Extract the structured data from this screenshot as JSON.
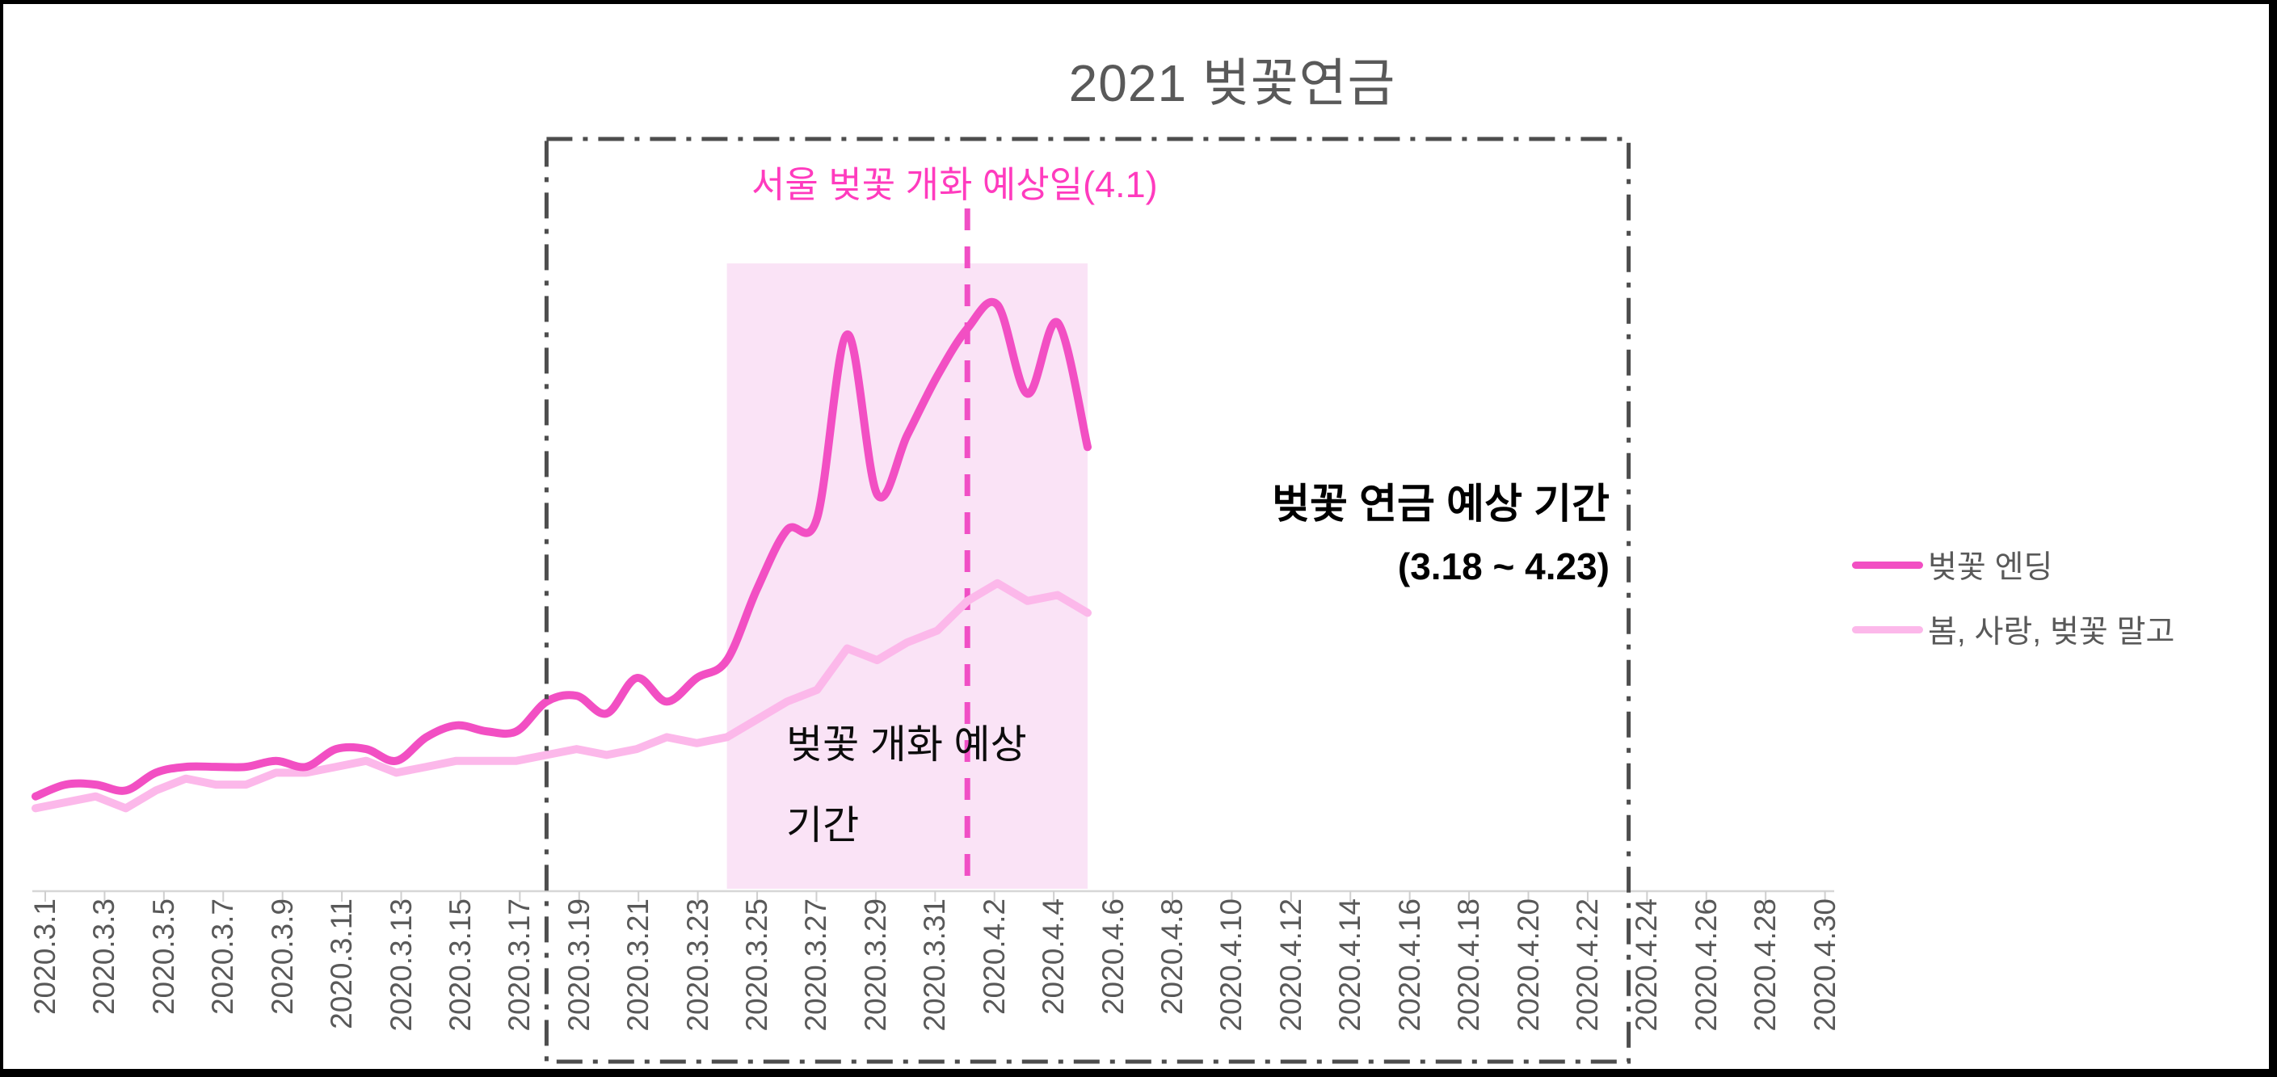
{
  "title": "2021 벚꽃연금",
  "annotations": {
    "bloom_date": "서울 벚꽃 개화 예상일(4.1)",
    "pension_line1": "벚꽃 연금 예상 기간",
    "pension_line2": "(3.18 ~ 4.23)",
    "bloom_period_line1": "벚꽃 개화 예상",
    "bloom_period_line2": "기간"
  },
  "legend": [
    {
      "label": "벚꽃 엔딩",
      "color": "#f24fc3"
    },
    {
      "label": "봄, 사랑, 벚꽃 말고",
      "color": "#fcb8ea"
    }
  ],
  "colors": {
    "series_dark": "#f24fc3",
    "series_light": "#fcb8ea",
    "bloom_region_fill": "#fae3f6",
    "bloom_vline": "#f04fc5",
    "pension_box_stroke": "#4d4d4d",
    "axis": "#d6d6d6",
    "tick": "#cfcfcf",
    "title_text": "#595959",
    "pink_text": "#ff3bbe"
  },
  "chart_data": {
    "type": "line",
    "title": "2021 벚꽃연금",
    "xlabel": "",
    "ylabel": "",
    "ylim": [
      0,
      100
    ],
    "grid": false,
    "legend_position": "right",
    "x_tick_labels": [
      "2020.3.1",
      "2020.3.3",
      "2020.3.5",
      "2020.3.7",
      "2020.3.9",
      "2020.3.11",
      "2020.3.13",
      "2020.3.15",
      "2020.3.17",
      "2020.3.19",
      "2020.3.21",
      "2020.3.23",
      "2020.3.25",
      "2020.3.27",
      "2020.3.29",
      "2020.3.31",
      "2020.4.2",
      "2020.4.4",
      "2020.4.6",
      "2020.4.8",
      "2020.4.10",
      "2020.4.12",
      "2020.4.14",
      "2020.4.16",
      "2020.4.18",
      "2020.4.20",
      "2020.4.22",
      "2020.4.24",
      "2020.4.26",
      "2020.4.28",
      "2020.4.30"
    ],
    "categories": [
      "2020.3.1",
      "2020.3.2",
      "2020.3.3",
      "2020.3.4",
      "2020.3.5",
      "2020.3.6",
      "2020.3.7",
      "2020.3.8",
      "2020.3.9",
      "2020.3.10",
      "2020.3.11",
      "2020.3.12",
      "2020.3.13",
      "2020.3.14",
      "2020.3.15",
      "2020.3.16",
      "2020.3.17",
      "2020.3.18",
      "2020.3.19",
      "2020.3.20",
      "2020.3.21",
      "2020.3.22",
      "2020.3.23",
      "2020.3.24",
      "2020.3.25",
      "2020.3.26",
      "2020.3.27",
      "2020.3.28",
      "2020.3.29",
      "2020.3.30",
      "2020.3.31",
      "2020.4.1",
      "2020.4.2",
      "2020.4.3",
      "2020.4.4",
      "2020.4.5"
    ],
    "series": [
      {
        "name": "벚꽃 엔딩",
        "color": "#f24fc3",
        "smooth": true,
        "values": [
          16,
          18,
          18,
          17,
          20,
          21,
          21,
          21,
          22,
          21,
          24,
          24,
          22,
          26,
          28,
          27,
          27,
          32,
          33,
          30,
          36,
          32,
          36,
          39,
          51,
          61,
          63,
          94,
          67,
          77,
          87,
          95,
          99,
          84,
          96,
          75
        ]
      },
      {
        "name": "봄, 사랑, 벚꽃 말고",
        "color": "#fcb8ea",
        "smooth": false,
        "values": [
          14,
          15,
          16,
          14,
          17,
          19,
          18,
          18,
          20,
          20,
          21,
          22,
          20,
          21,
          22,
          22,
          22,
          23,
          24,
          23,
          24,
          26,
          25,
          26,
          29,
          32,
          34,
          41,
          39,
          42,
          44,
          49,
          52,
          49,
          50,
          47
        ]
      }
    ],
    "regions": {
      "bloom_window": {
        "label": "벚꽃 개화 예상 기간",
        "start": "2020.3.24",
        "end": "2020.4.5"
      },
      "pension_window": {
        "label": "벚꽃 연금 예상 기간 (3.18 ~ 4.23)",
        "start": "2020.3.18",
        "end": "2020.4.23"
      }
    },
    "vline": {
      "label": "서울 벚꽃 개화 예상일(4.1)",
      "date": "2020.4.1"
    }
  }
}
